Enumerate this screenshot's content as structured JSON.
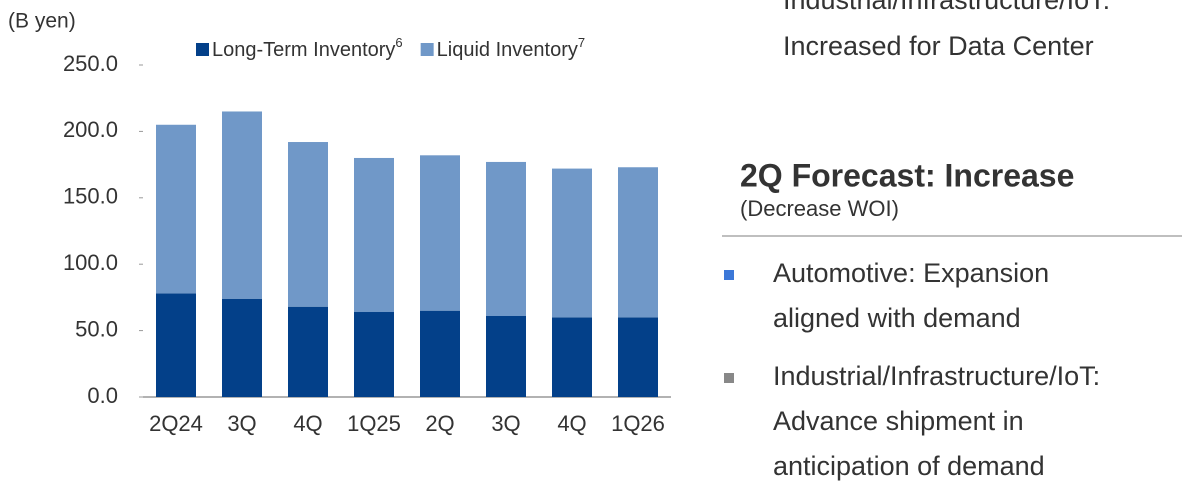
{
  "chart_data": {
    "type": "stacked_bar",
    "axis_title": "(B yen)",
    "categories": [
      "2Q24",
      "3Q",
      "4Q",
      "1Q25",
      "2Q",
      "3Q",
      "4Q",
      "1Q26"
    ],
    "series": [
      {
        "name": "Long-Term Inventory",
        "footnote": "6",
        "color": "#034089",
        "values": [
          78,
          74,
          68,
          64,
          65,
          61,
          60,
          60
        ]
      },
      {
        "name": "Liquid Inventory",
        "footnote": "7",
        "color": "#7098c8",
        "values": [
          127,
          141,
          124,
          116,
          117,
          116,
          112,
          113
        ]
      }
    ],
    "ylim": [
      0,
      250
    ],
    "yticks": [
      {
        "value": 0,
        "label": "0.0"
      },
      {
        "value": 50,
        "label": "50.0"
      },
      {
        "value": 100,
        "label": "100.0"
      },
      {
        "value": 150,
        "label": "150.0"
      },
      {
        "value": 200,
        "label": "200.0"
      },
      {
        "value": 250,
        "label": "250.0"
      }
    ],
    "grid": false
  },
  "side": {
    "top_lines": [
      "Industrial/Infrastructure/IoT:",
      "Increased for Data Center"
    ],
    "heading": "2Q Forecast: Increase",
    "subheading": "(Decrease WOI)",
    "bullets": [
      {
        "color": "#3c78d8",
        "lines": [
          "Automotive: Expansion",
          "aligned with demand"
        ]
      },
      {
        "color": "#888888",
        "lines": [
          "Industrial/Infrastructure/IoT:",
          "Advance shipment in",
          "anticipation of demand"
        ]
      }
    ]
  }
}
